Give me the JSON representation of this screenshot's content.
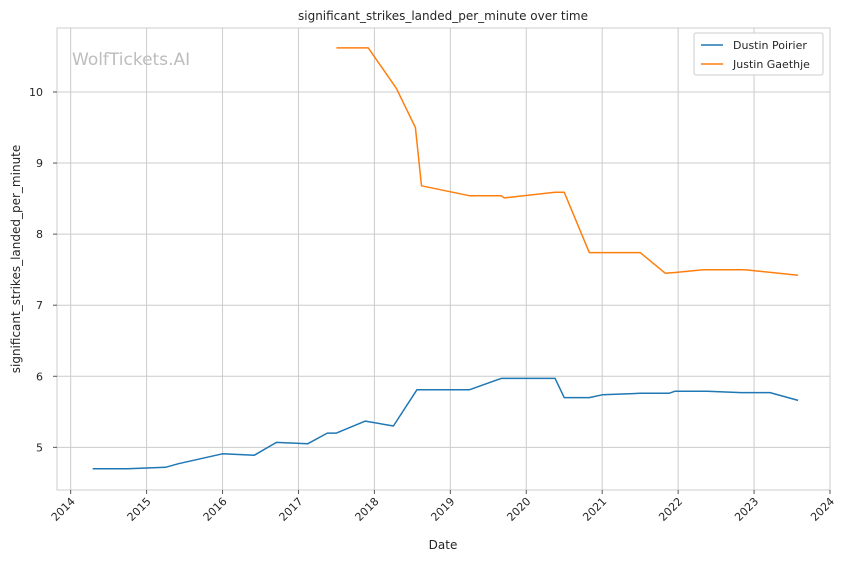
{
  "watermark": "WolfTickets.AI",
  "chart_data": {
    "type": "line",
    "title": "significant_strikes_landed_per_minute over time",
    "xlabel": "Date",
    "ylabel": "significant_strikes_landed_per_minute",
    "x_ticks": [
      "2014",
      "2015",
      "2016",
      "2017",
      "2018",
      "2019",
      "2020",
      "2021",
      "2022",
      "2023",
      "2024"
    ],
    "y_ticks": [
      5,
      6,
      7,
      8,
      9,
      10
    ],
    "xlim": [
      2013.82,
      2024.0
    ],
    "ylim": [
      4.4,
      10.9
    ],
    "grid": true,
    "legend_position": "top-right",
    "colors": {
      "Dustin Poirier": "#1f77b4",
      "Justin Gaethje": "#ff7f0e"
    },
    "series": [
      {
        "name": "Dustin Poirier",
        "x": [
          2014.29,
          2014.75,
          2015.25,
          2015.42,
          2016.0,
          2016.42,
          2016.71,
          2017.12,
          2017.38,
          2017.5,
          2017.88,
          2018.25,
          2018.56,
          2019.25,
          2019.67,
          2020.38,
          2020.5,
          2020.83,
          2021.0,
          2021.5,
          2021.88,
          2021.96,
          2022.38,
          2022.83,
          2023.21,
          2023.58
        ],
        "y": [
          4.7,
          4.7,
          4.72,
          4.77,
          4.91,
          4.89,
          5.07,
          5.05,
          5.2,
          5.2,
          5.37,
          5.3,
          5.81,
          5.81,
          5.97,
          5.97,
          5.7,
          5.7,
          5.74,
          5.76,
          5.76,
          5.79,
          5.79,
          5.77,
          5.77,
          5.66
        ]
      },
      {
        "name": "Justin Gaethje",
        "x": [
          2017.5,
          2017.92,
          2018.29,
          2018.54,
          2018.62,
          2019.25,
          2019.67,
          2019.71,
          2020.38,
          2020.5,
          2020.83,
          2021.5,
          2021.83,
          2021.96,
          2022.33,
          2022.88,
          2023.58
        ],
        "y": [
          10.62,
          10.62,
          10.05,
          9.5,
          8.68,
          8.54,
          8.54,
          8.51,
          8.59,
          8.59,
          7.74,
          7.74,
          7.45,
          7.46,
          7.5,
          7.5,
          7.42
        ]
      }
    ]
  }
}
